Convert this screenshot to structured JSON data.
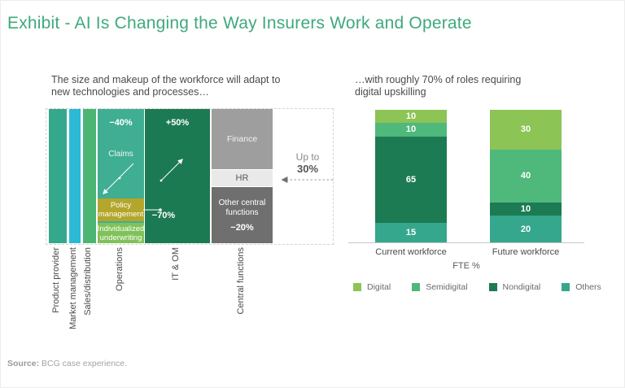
{
  "title": "Exhibit - AI Is Changing the Way Insurers Work and Operate",
  "colors": {
    "title_green": "#3fa97c",
    "product_provider": "#35a78c",
    "market_management": "#2bb9d6",
    "sales_distribution": "#4cb573",
    "operations": "#3fae93",
    "it_om": "#1c7a52",
    "finance_gray": "#9e9e9e",
    "hr_gray": "#e9e9e9",
    "other_gray": "#6f6f6f",
    "policy_olive": "#b3a62b",
    "individualized_green": "#80c15a"
  },
  "left_panel": {
    "subtitle_line1": "The size and makeup of the workforce will adapt to",
    "subtitle_line2": "new technologies and processes…",
    "categories": [
      "Product provider",
      "Market management",
      "Sales/distribution",
      "Operations",
      "IT & OM",
      "Central functions"
    ],
    "operations": {
      "change": "−40%",
      "claims": "Claims",
      "policy": "Policy management",
      "individualized": "Individualized underwriting"
    },
    "it_om": {
      "change": "+50%",
      "sub_change": "−70%"
    },
    "central": {
      "finance": "Finance",
      "hr": "HR",
      "other": "Other central functions",
      "other_change": "−20%"
    },
    "up_to": {
      "line1": "Up to",
      "line2": "30%"
    }
  },
  "right_panel": {
    "subtitle_line1": "…with roughly 70% of roles requiring",
    "subtitle_line2": "digital upskilling"
  },
  "source": {
    "label": "Source:",
    "text": " BCG case experience."
  },
  "chart_data": [
    {
      "type": "bar",
      "subtype": "workforce-structure-diagram",
      "title": "The size and makeup of the workforce will adapt to new technologies and processes…",
      "categories": [
        "Product provider",
        "Market management",
        "Sales/distribution",
        "Operations",
        "IT & OM",
        "Central functions"
      ],
      "annotations": [
        {
          "category": "Operations",
          "change": "−40%",
          "areas": [
            "Claims",
            "Policy management",
            "Individualized underwriting"
          ]
        },
        {
          "category": "Operations / IT & OM",
          "change": "−70%",
          "applies_to": "Policy management / Individualized underwriting"
        },
        {
          "category": "IT & OM",
          "change": "+50%"
        },
        {
          "category": "Central functions",
          "segments": [
            "Finance",
            "HR",
            "Other central functions"
          ],
          "change": "−20%"
        },
        {
          "category": "HR",
          "note": "Up to 30%"
        }
      ]
    },
    {
      "type": "bar",
      "stacked": true,
      "title": "…with roughly 70% of roles requiring digital upskilling",
      "categories": [
        "Current workforce",
        "Future workforce"
      ],
      "series": [
        {
          "name": "Digital",
          "values": [
            10,
            30
          ],
          "color": "#8cc455"
        },
        {
          "name": "Semidigital",
          "values": [
            10,
            40
          ],
          "color": "#4fb87b"
        },
        {
          "name": "Nondigital",
          "values": [
            65,
            10
          ],
          "color": "#1c7b52"
        },
        {
          "name": "Others",
          "values": [
            15,
            20
          ],
          "color": "#35a78c"
        }
      ],
      "stack_order_top_to_bottom": [
        "Digital",
        "Semidigital",
        "Nondigital",
        "Others"
      ],
      "xlabel": "FTE %",
      "ylim": [
        0,
        100
      ],
      "legend_position": "bottom"
    }
  ]
}
